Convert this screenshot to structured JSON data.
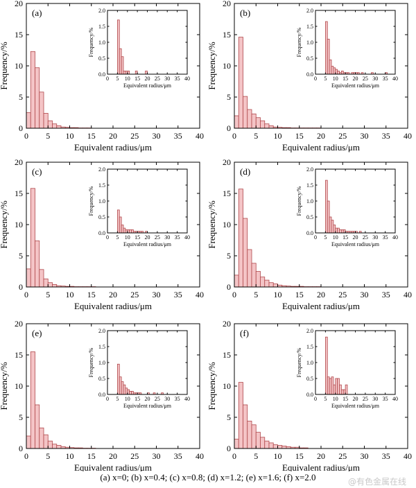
{
  "caption": "(a) x=0; (b) x=0.4; (c) x=0.8; (d) x=1.2; (e) x=1.6; (f) x=2.0",
  "watermark": "@有色金属在线",
  "colors": {
    "bar_fill": "#f4c4c6",
    "bar_edge": "#b0484b"
  },
  "chart_data": [
    {
      "type": "bar",
      "panel": "(a)",
      "xlabel": "Equivalent radius/μm",
      "ylabel": "Frequency/%",
      "xlim": [
        0,
        40
      ],
      "ylim": [
        0,
        20
      ],
      "xticks": [
        0,
        5,
        10,
        15,
        20,
        25,
        30,
        35,
        40
      ],
      "yticks": [
        0,
        5,
        10,
        15,
        20
      ],
      "bin_width": 1,
      "x": [
        0.5,
        1.5,
        2.5,
        3.5,
        4.5,
        5.5,
        6.5,
        7.5,
        8.5,
        9.5,
        10.5,
        11.5,
        12.5,
        13.5,
        14.5
      ],
      "values": [
        2.5,
        12.3,
        9.7,
        5.8,
        2.4,
        1.2,
        0.7,
        0.4,
        0.2,
        0.15,
        0.1,
        0.1,
        0.05,
        0.05,
        0.05
      ],
      "inset": {
        "type": "bar",
        "xlabel": "Equivalent radius/μm",
        "ylabel": "Frequency/%",
        "xlim": [
          0,
          40
        ],
        "ylim": [
          0,
          2.0
        ],
        "xticks": [
          0,
          5,
          10,
          15,
          20,
          25,
          30,
          35,
          40
        ],
        "yticks": [
          0.0,
          0.5,
          1.0,
          1.5,
          2.0
        ],
        "bin_width": 1,
        "x": [
          5.5,
          6.5,
          7.5,
          8.5,
          9.5,
          10.5,
          11.5,
          12.5,
          13.5,
          14.5,
          15.5,
          16.5,
          17.5,
          18.5,
          19.5
        ],
        "values": [
          1.7,
          0.8,
          0.55,
          0.1,
          0.1,
          0.1,
          0,
          0,
          0,
          0.1,
          0,
          0,
          0,
          0,
          0.1
        ]
      }
    },
    {
      "type": "bar",
      "panel": "(b)",
      "xlabel": "Equivalent radius/μm",
      "ylabel": "Frequency/%",
      "xlim": [
        0,
        40
      ],
      "ylim": [
        0,
        20
      ],
      "xticks": [
        0,
        5,
        10,
        15,
        20,
        25,
        30,
        35,
        40
      ],
      "yticks": [
        0,
        5,
        10,
        15,
        20
      ],
      "bin_width": 1,
      "x": [
        0.5,
        1.5,
        2.5,
        3.5,
        4.5,
        5.5,
        6.5,
        7.5,
        8.5,
        9.5,
        10.5,
        11.5,
        12.5,
        13.5,
        14.5,
        15.5,
        16.5,
        17.5,
        18.5,
        19.5
      ],
      "values": [
        2.0,
        14.6,
        5.1,
        3.0,
        2.3,
        1.7,
        1.2,
        0.7,
        0.4,
        0.2,
        0.15,
        0.1,
        0.1,
        0.05,
        0.05,
        0.05,
        0.05,
        0.05,
        0.05,
        0.05
      ],
      "inset": {
        "type": "bar",
        "xlabel": "Equivalent radius/μm",
        "ylabel": "Frequency/%",
        "xlim": [
          0,
          40
        ],
        "ylim": [
          0,
          2.0
        ],
        "xticks": [
          0,
          5,
          10,
          15,
          20,
          25,
          30,
          35,
          40
        ],
        "yticks": [
          0.0,
          0.5,
          1.0,
          1.5,
          2.0
        ],
        "bin_width": 1,
        "x": [
          5.5,
          6.5,
          7.5,
          8.5,
          9.5,
          10.5,
          11.5,
          12.5,
          13.5,
          14.5,
          15.5,
          16.5,
          17.5,
          18.5,
          19.5,
          20.5,
          21.5,
          22.5,
          23.5,
          24.5,
          25.5,
          26.5,
          27.5,
          28.5,
          29.5,
          30.5,
          31.5,
          32.5,
          33.5,
          34.5,
          35.5
        ],
        "values": [
          1.65,
          1.1,
          0.45,
          0.25,
          0.2,
          0.15,
          0.1,
          0.05,
          0.1,
          0.05,
          0.05,
          0.05,
          0,
          0.05,
          0.05,
          0.05,
          0.05,
          0,
          0.05,
          0,
          0,
          0,
          0,
          0.05,
          0,
          0,
          0,
          0,
          0,
          0,
          0.05
        ]
      }
    },
    {
      "type": "bar",
      "panel": "(c)",
      "xlabel": "Equivalent radius/μm",
      "ylabel": "Frequency/%",
      "xlim": [
        0,
        40
      ],
      "ylim": [
        0,
        20
      ],
      "xticks": [
        0,
        5,
        10,
        15,
        20,
        25,
        30,
        35,
        40
      ],
      "yticks": [
        0,
        5,
        10,
        15,
        20
      ],
      "bin_width": 1,
      "x": [
        0.5,
        1.5,
        2.5,
        3.5,
        4.5,
        5.5,
        6.5,
        7.5,
        8.5,
        9.5,
        10.5,
        11.5,
        12.5,
        13.5,
        14.5,
        15.5
      ],
      "values": [
        2.9,
        15.8,
        7.4,
        2.8,
        1.3,
        0.7,
        0.4,
        0.2,
        0.15,
        0.1,
        0.1,
        0.05,
        0.05,
        0.05,
        0.05,
        0.05
      ],
      "inset": {
        "type": "bar",
        "xlabel": "Equivalent radius/μm",
        "ylabel": "Frequency/%",
        "xlim": [
          0,
          40
        ],
        "ylim": [
          0,
          2.0
        ],
        "xticks": [
          0,
          5,
          10,
          15,
          20,
          25,
          30,
          35,
          40
        ],
        "yticks": [
          0.0,
          0.5,
          1.0,
          1.5,
          2.0
        ],
        "bin_width": 1,
        "x": [
          5.5,
          6.5,
          7.5,
          8.5,
          9.5,
          10.5,
          11.5,
          12.5,
          13.5,
          14.5,
          15.5,
          16.5,
          17.5,
          18.5,
          19.5
        ],
        "values": [
          0.72,
          0.5,
          0.25,
          0.15,
          0.1,
          0.1,
          0.1,
          0.1,
          0.05,
          0.05,
          0.05,
          0.05,
          0.05,
          0,
          0.05
        ]
      }
    },
    {
      "type": "bar",
      "panel": "(d)",
      "xlabel": "Equivalent radius/μm",
      "ylabel": "Frequency/%",
      "xlim": [
        0,
        40
      ],
      "ylim": [
        0,
        20
      ],
      "xticks": [
        0,
        5,
        10,
        15,
        20,
        25,
        30,
        35,
        40
      ],
      "yticks": [
        0,
        5,
        10,
        15,
        20
      ],
      "bin_width": 1,
      "x": [
        0.5,
        1.5,
        2.5,
        3.5,
        4.5,
        5.5,
        6.5,
        7.5,
        8.5,
        9.5,
        10.5,
        11.5,
        12.5,
        13.5,
        14.5,
        15.5,
        16.5,
        17.5,
        18.5,
        19.5
      ],
      "values": [
        1.9,
        15.7,
        11.0,
        6.0,
        3.8,
        2.5,
        1.6,
        1.1,
        0.7,
        0.5,
        0.3,
        0.2,
        0.15,
        0.1,
        0.1,
        0.1,
        0.05,
        0.05,
        0.05,
        0.05
      ],
      "inset": {
        "type": "bar",
        "xlabel": "Equivalent radius/μm",
        "ylabel": "Frequency/%",
        "xlim": [
          0,
          40
        ],
        "ylim": [
          0,
          2.0
        ],
        "xticks": [
          0,
          5,
          10,
          15,
          20,
          25,
          30,
          35,
          40
        ],
        "yticks": [
          0.0,
          0.5,
          1.0,
          1.5,
          2.0
        ],
        "bin_width": 1,
        "x": [
          5.5,
          6.5,
          7.5,
          8.5,
          9.5,
          10.5,
          11.5,
          12.5,
          13.5,
          14.5,
          15.5,
          16.5,
          17.5,
          18.5,
          19.5,
          20.5,
          21.5,
          22.5
        ],
        "values": [
          1.65,
          1.0,
          0.5,
          0.4,
          0.25,
          0.15,
          0.15,
          0.1,
          0.1,
          0.1,
          0.05,
          0.05,
          0.05,
          0.05,
          0.05,
          0.05,
          0,
          0.05
        ]
      }
    },
    {
      "type": "bar",
      "panel": "(e)",
      "xlabel": "Equivalent radius/μm",
      "ylabel": "Frequency/%",
      "xlim": [
        0,
        40
      ],
      "ylim": [
        0,
        20
      ],
      "xticks": [
        0,
        5,
        10,
        15,
        20,
        25,
        30,
        35,
        40
      ],
      "yticks": [
        0,
        5,
        10,
        15,
        20
      ],
      "bin_width": 1,
      "x": [
        0.5,
        1.5,
        2.5,
        3.5,
        4.5,
        5.5,
        6.5,
        7.5,
        8.5,
        9.5,
        10.5,
        11.5,
        12.5,
        13.5,
        14.5,
        15.5
      ],
      "values": [
        2.0,
        15.5,
        7.0,
        3.3,
        2.2,
        1.2,
        0.7,
        0.5,
        0.3,
        0.2,
        0.15,
        0.1,
        0.1,
        0.05,
        0.05,
        0.05
      ],
      "inset": {
        "type": "bar",
        "xlabel": "Equivalent radius/μm",
        "ylabel": "Frequency/%",
        "xlim": [
          0,
          40
        ],
        "ylim": [
          0,
          2.0
        ],
        "xticks": [
          0,
          5,
          10,
          15,
          20,
          25,
          30,
          35,
          40
        ],
        "yticks": [
          0.0,
          0.5,
          1.0,
          1.5,
          2.0
        ],
        "bin_width": 1,
        "x": [
          5.5,
          6.5,
          7.5,
          8.5,
          9.5,
          10.5,
          11.5,
          12.5,
          13.5,
          14.5,
          15.5,
          16.5,
          17.5,
          18.5,
          19.5,
          20.5,
          21.5,
          22.5,
          23.5,
          24.5,
          25.5,
          26.5,
          27.5
        ],
        "values": [
          0.95,
          0.55,
          0.4,
          0.3,
          0.2,
          0.15,
          0.1,
          0.1,
          0.05,
          0.05,
          0.05,
          0.05,
          0,
          0,
          0,
          0.05,
          0,
          0,
          0.05,
          0,
          0,
          0,
          0.05
        ]
      }
    },
    {
      "type": "bar",
      "panel": "(f)",
      "xlabel": "Equivalent radius/μm",
      "ylabel": "Frequency/%",
      "xlim": [
        0,
        40
      ],
      "ylim": [
        0,
        20
      ],
      "xticks": [
        0,
        5,
        10,
        15,
        20,
        25,
        30,
        35,
        40
      ],
      "yticks": [
        0,
        5,
        10,
        15,
        20
      ],
      "bin_width": 1,
      "x": [
        0.5,
        1.5,
        2.5,
        3.5,
        4.5,
        5.5,
        6.5,
        7.5,
        8.5,
        9.5,
        10.5,
        11.5,
        12.5,
        13.5,
        14.5,
        15.5,
        16.5
      ],
      "values": [
        1.5,
        10.6,
        7.0,
        4.4,
        3.8,
        2.6,
        1.8,
        1.2,
        0.9,
        0.6,
        0.5,
        0.4,
        0.3,
        0.2,
        0.2,
        0.1,
        0.1
      ],
      "inset": {
        "type": "bar",
        "xlabel": "Equivalent radius/μm",
        "ylabel": "Frequency/%",
        "xlim": [
          0,
          40
        ],
        "ylim": [
          0,
          2.0
        ],
        "xticks": [
          0,
          5,
          10,
          15,
          20,
          25,
          30,
          35,
          40
        ],
        "yticks": [
          0.0,
          0.5,
          1.0,
          1.5,
          2.0
        ],
        "bin_width": 1,
        "x": [
          5.5,
          6.5,
          7.5,
          8.5,
          9.5,
          10.5,
          11.5,
          12.5,
          13.5,
          14.5,
          15.5,
          16.5
        ],
        "values": [
          1.8,
          0.55,
          0.5,
          0.55,
          0.3,
          0.5,
          0.5,
          0.3,
          0.15,
          0.15,
          0.3,
          0
        ]
      }
    }
  ]
}
